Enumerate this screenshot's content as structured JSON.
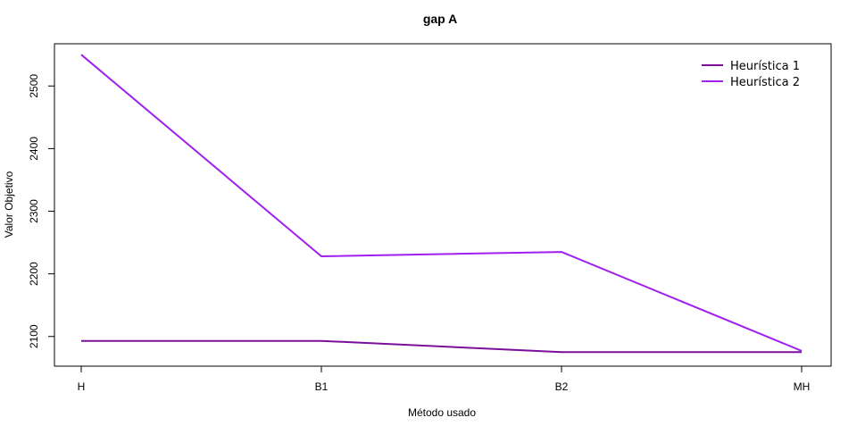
{
  "chart_data": {
    "type": "line",
    "title": "gap A",
    "xlabel": "Método usado",
    "ylabel": "Valor Objetivo",
    "categories": [
      "H",
      "B1",
      "B2",
      "MH"
    ],
    "yticks": [
      2100,
      2200,
      2300,
      2400,
      2500
    ],
    "ylim": [
      2054,
      2566
    ],
    "grid": false,
    "legend_position": "top-right",
    "series": [
      {
        "name": "Heurística 1",
        "values": [
          2093,
          2093,
          2075,
          2075
        ],
        "color": "#7B0F9B"
      },
      {
        "name": "Heurística 2",
        "values": [
          2550,
          2228,
          2235,
          2077
        ],
        "color": "#A020F0"
      }
    ]
  }
}
